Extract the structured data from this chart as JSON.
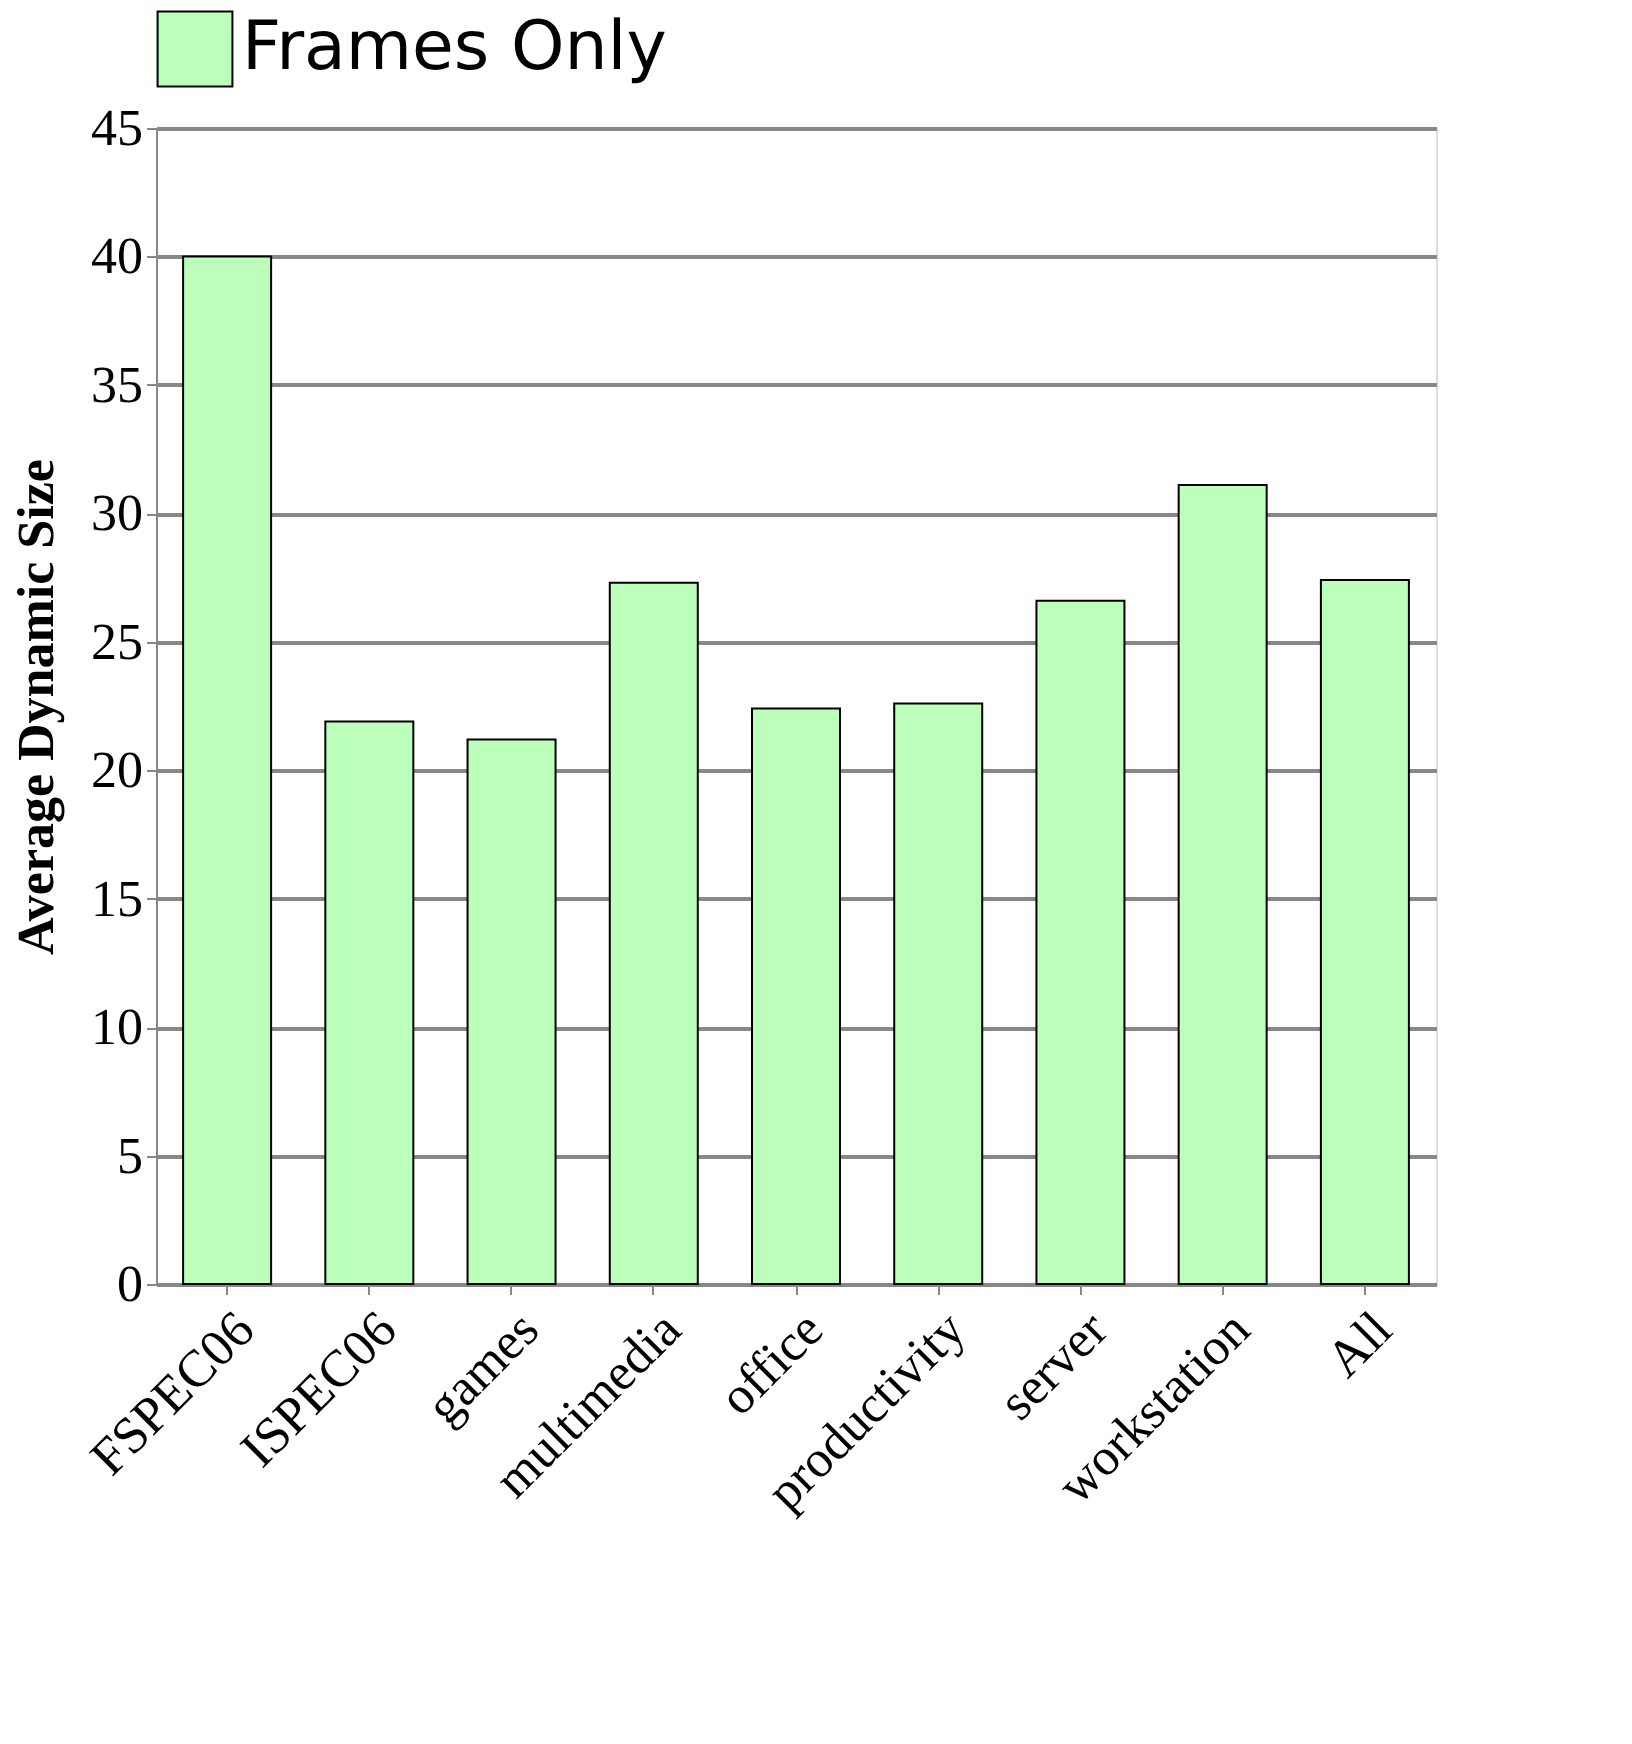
{
  "chart_data": {
    "type": "bar",
    "ylabel": "Average Dynamic Size",
    "categories": [
      "FSPEC06",
      "ISPEC06",
      "games",
      "multimedia",
      "office",
      "productivity",
      "server",
      "workstation",
      "All"
    ],
    "series": [
      {
        "name": "Frames Only",
        "color": "#bbffbb",
        "values": [
          40.0,
          21.9,
          21.2,
          27.3,
          22.4,
          22.6,
          26.6,
          31.1,
          27.4
        ]
      }
    ],
    "ylim": [
      0,
      45
    ],
    "yticks": [
      0,
      5,
      10,
      15,
      20,
      25,
      30,
      35,
      40,
      45
    ],
    "grid": "y",
    "legend": "top"
  }
}
